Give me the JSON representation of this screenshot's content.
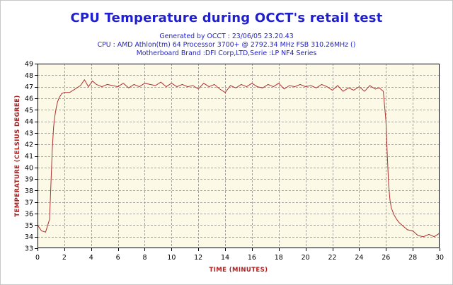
{
  "chart_data": {
    "type": "line",
    "title": "CPU Temperature during OCCT's retail test",
    "subtitle_lines": [
      "Generated by OCCT : 23/06/05 23.20.43",
      "CPU : AMD Athlon(tm) 64 Processor 3700+ @ 2792.34 MHz FSB 310.26MHz ()",
      "Motherboard Brand :DFI Corp,LTD,Serie :LP NF4 Series"
    ],
    "xlabel": "TIME (MINUTES)",
    "ylabel": "TEMPERATURE (CELSIUS DEGREE)",
    "xlim": [
      0,
      30
    ],
    "ylim": [
      33,
      49
    ],
    "xticks": [
      0,
      2,
      4,
      6,
      8,
      10,
      12,
      14,
      16,
      18,
      20,
      22,
      24,
      26,
      28,
      30
    ],
    "yticks": [
      33,
      34,
      35,
      36,
      37,
      38,
      39,
      40,
      41,
      42,
      43,
      44,
      45,
      46,
      47,
      48,
      49
    ],
    "grid": true,
    "colors": {
      "line": "#b03030",
      "plot_bg": "#fcf9e6",
      "grid": "#8a8a8a",
      "title": "#1f1fcf",
      "axis_label": "#b02020"
    },
    "series": [
      {
        "x": [
          0,
          0.3,
          0.6,
          0.9,
          1.0,
          1.1,
          1.2,
          1.3,
          1.4,
          1.5,
          1.6,
          1.8,
          2.0,
          2.4,
          2.8,
          3.2,
          3.5,
          3.8,
          4.1,
          4.4,
          4.8,
          5.2,
          5.6,
          6.0,
          6.4,
          6.8,
          7.2,
          7.6,
          8.0,
          8.4,
          8.8,
          9.2,
          9.6,
          10.0,
          10.4,
          10.8,
          11.2,
          11.6,
          12.0,
          12.4,
          12.8,
          13.2,
          13.6,
          14.0,
          14.4,
          14.8,
          15.2,
          15.6,
          16.0,
          16.4,
          16.8,
          17.2,
          17.6,
          18.0,
          18.4,
          18.8,
          19.2,
          19.6,
          20.0,
          20.4,
          20.8,
          21.2,
          21.6,
          22.0,
          22.4,
          22.8,
          23.2,
          23.6,
          24.0,
          24.4,
          24.8,
          25.2,
          25.5,
          25.8,
          26.0,
          26.1,
          26.2,
          26.3,
          26.4,
          26.6,
          26.8,
          27.0,
          27.3,
          27.6,
          28.0,
          28.4,
          28.8,
          29.2,
          29.6,
          30.0
        ],
        "values": [
          35.0,
          34.5,
          34.4,
          35.5,
          38.5,
          41.5,
          43.5,
          44.5,
          45.2,
          45.7,
          46.0,
          46.4,
          46.5,
          46.5,
          46.8,
          47.1,
          47.6,
          47.0,
          47.5,
          47.2,
          47.0,
          47.2,
          47.1,
          47.0,
          47.3,
          46.9,
          47.2,
          47.0,
          47.3,
          47.2,
          47.1,
          47.4,
          47.0,
          47.3,
          47.0,
          47.2,
          47.0,
          47.1,
          46.8,
          47.3,
          47.0,
          47.2,
          46.8,
          46.5,
          47.1,
          46.9,
          47.2,
          47.0,
          47.3,
          47.0,
          46.9,
          47.2,
          47.0,
          47.3,
          46.8,
          47.1,
          47.0,
          47.2,
          47.0,
          47.1,
          46.9,
          47.2,
          47.0,
          46.7,
          47.1,
          46.6,
          46.9,
          46.7,
          47.0,
          46.6,
          47.1,
          46.8,
          46.9,
          46.6,
          44.0,
          41.0,
          38.5,
          37.2,
          36.5,
          35.9,
          35.5,
          35.2,
          34.9,
          34.6,
          34.5,
          34.1,
          34.0,
          34.2,
          34.0,
          34.3
        ]
      }
    ]
  }
}
